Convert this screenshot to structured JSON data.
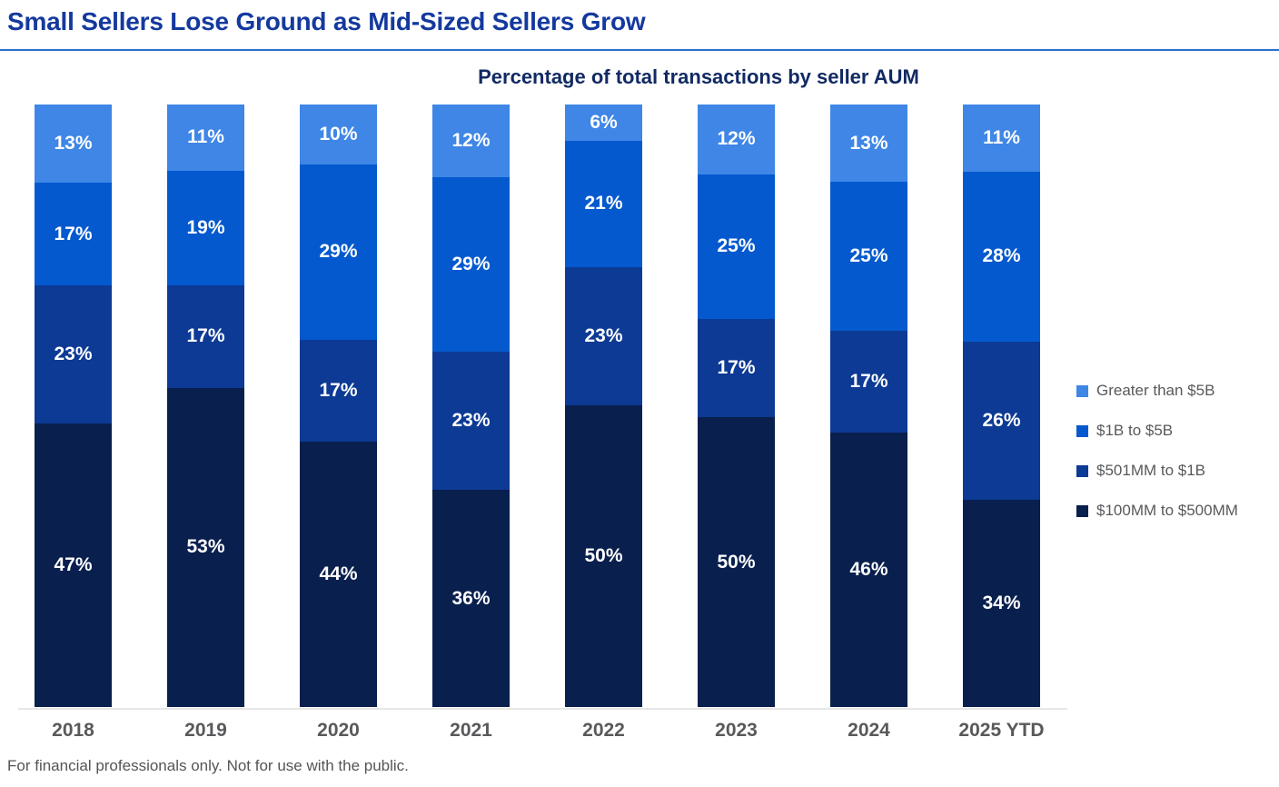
{
  "header": {
    "title": "Small Sellers Lose Ground as Mid-Sized Sellers Grow"
  },
  "chart_data": {
    "type": "bar",
    "stacked": true,
    "orientation": "vertical",
    "title": "Percentage of total transactions by seller AUM",
    "categories": [
      "2018",
      "2019",
      "2020",
      "2021",
      "2022",
      "2023",
      "2024",
      "2025 YTD"
    ],
    "series": [
      {
        "name": "Greater than $5B",
        "color": "#3f86e6",
        "values": [
          13,
          11,
          10,
          12,
          6,
          12,
          13,
          11
        ]
      },
      {
        "name": "$1B to $5B",
        "color": "#0459ce",
        "values": [
          17,
          19,
          29,
          29,
          21,
          25,
          25,
          28
        ]
      },
      {
        "name": "$501MM to $1B",
        "color": "#0c3a94",
        "values": [
          23,
          17,
          17,
          23,
          23,
          17,
          17,
          26
        ]
      },
      {
        "name": "$100MM to $500MM",
        "color": "#091f4e",
        "values": [
          47,
          53,
          44,
          36,
          50,
          50,
          46,
          34
        ]
      }
    ],
    "stack_order_top_to_bottom": [
      "Greater than $5B",
      "$1B to $5B",
      "$501MM to $1B",
      "$100MM to $500MM"
    ],
    "value_suffix": "%",
    "ylim": [
      0,
      100
    ],
    "grid": false,
    "y_axis_visible": false,
    "legend_position": "right",
    "data_label_color": "#ffffff"
  },
  "footer": {
    "text": "For financial professionals only. Not for use with the public."
  },
  "colors": {
    "page_title": "#14399e",
    "title_underline": "#2e6fd2",
    "chart_title": "#122a63",
    "axis_line": "#e7e7e7",
    "axis_label": "#58595b",
    "legend_text": "#58595b",
    "footer_text": "#555555",
    "background": "#ffffff"
  }
}
